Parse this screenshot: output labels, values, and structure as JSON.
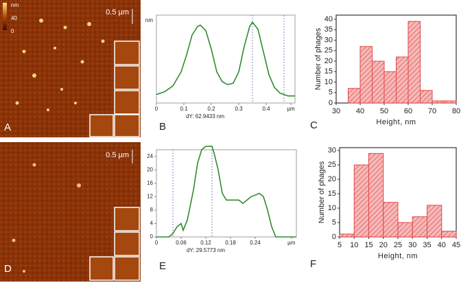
{
  "images": [
    {
      "panel": "A",
      "scale": "0.5 µm",
      "colorbar": {
        "label": "nm",
        "ticks": [
          40,
          0
        ]
      }
    },
    {
      "panel": "D",
      "scale": "0.5 µm"
    }
  ],
  "chart_data": [
    {
      "type": "line",
      "panel": "B",
      "ylabel": "nm",
      "annotation": "dY: 62.9433 nm",
      "color": "#2e8b2e",
      "x": [
        0,
        0.03,
        0.06,
        0.09,
        0.11,
        0.13,
        0.15,
        0.16,
        0.18,
        0.2,
        0.22,
        0.24,
        0.26,
        0.28,
        0.3,
        0.32,
        0.34,
        0.35,
        0.37,
        0.39,
        0.41,
        0.43,
        0.45,
        0.48,
        0.505
      ],
      "values": [
        6,
        8,
        12,
        22,
        34,
        48,
        54,
        55,
        51,
        38,
        22,
        15,
        13,
        14,
        22,
        40,
        54,
        57,
        52,
        36,
        20,
        11,
        7,
        5,
        5
      ],
      "cursors": [
        0.35,
        0.465
      ],
      "xlim": [
        0,
        0.505
      ],
      "ylim": [
        0,
        62
      ],
      "xticks": [
        0,
        0.1,
        0.2,
        0.3,
        0.4,
        {
          "value": 0.49,
          "label": "µm"
        }
      ]
    },
    {
      "type": "histogram",
      "panel": "C",
      "xlabel": "Height, nm",
      "ylabel": "Number of phages",
      "color": "#e04848",
      "bins": [
        35,
        40,
        45,
        50,
        55,
        60,
        65,
        70,
        75,
        80
      ],
      "values": [
        7,
        27,
        20,
        15,
        22,
        39,
        6,
        1,
        1
      ],
      "xlim": [
        30,
        80
      ],
      "ylim": [
        0,
        42
      ],
      "xticks": [
        30,
        40,
        50,
        60,
        70,
        80
      ],
      "yticks": [
        0,
        5,
        10,
        15,
        20,
        25,
        30,
        35,
        40
      ]
    },
    {
      "type": "line",
      "panel": "E",
      "annotation": "dY: 29.5773 nm",
      "color": "#2e8b2e",
      "x": [
        0,
        0.03,
        0.04,
        0.05,
        0.06,
        0.065,
        0.075,
        0.09,
        0.1,
        0.11,
        0.12,
        0.135,
        0.14,
        0.15,
        0.16,
        0.17,
        0.18,
        0.2,
        0.21,
        0.23,
        0.25,
        0.26,
        0.27,
        0.28,
        0.29,
        0.34
      ],
      "values": [
        0,
        0,
        1,
        3,
        4,
        2,
        5,
        14,
        22,
        26,
        27,
        27,
        25,
        20,
        13,
        11,
        11,
        11,
        10,
        12,
        13,
        12,
        8,
        3,
        0,
        0
      ],
      "cursors": [
        0.04,
        0.135
      ],
      "xlim": [
        0,
        0.34
      ],
      "ylim": [
        0,
        26
      ],
      "xticks": [
        0,
        0.06,
        0.12,
        0.18,
        0.24,
        {
          "value": 0.328,
          "label": "µm"
        }
      ],
      "yticks": [
        0,
        4,
        8,
        12,
        16,
        20,
        24
      ]
    },
    {
      "type": "histogram",
      "panel": "F",
      "xlabel": "Height, nm",
      "ylabel": "Number of phages",
      "color": "#e04848",
      "bins": [
        5,
        10,
        15,
        20,
        25,
        30,
        35,
        40,
        45
      ],
      "values": [
        1,
        25,
        29,
        12,
        5,
        7,
        11,
        2
      ],
      "xlim": [
        5,
        45
      ],
      "ylim": [
        0,
        31
      ],
      "xticks": [
        5,
        10,
        15,
        20,
        25,
        30,
        35,
        40,
        45
      ],
      "yticks": [
        0,
        5,
        10,
        15,
        20,
        25,
        30
      ]
    }
  ]
}
